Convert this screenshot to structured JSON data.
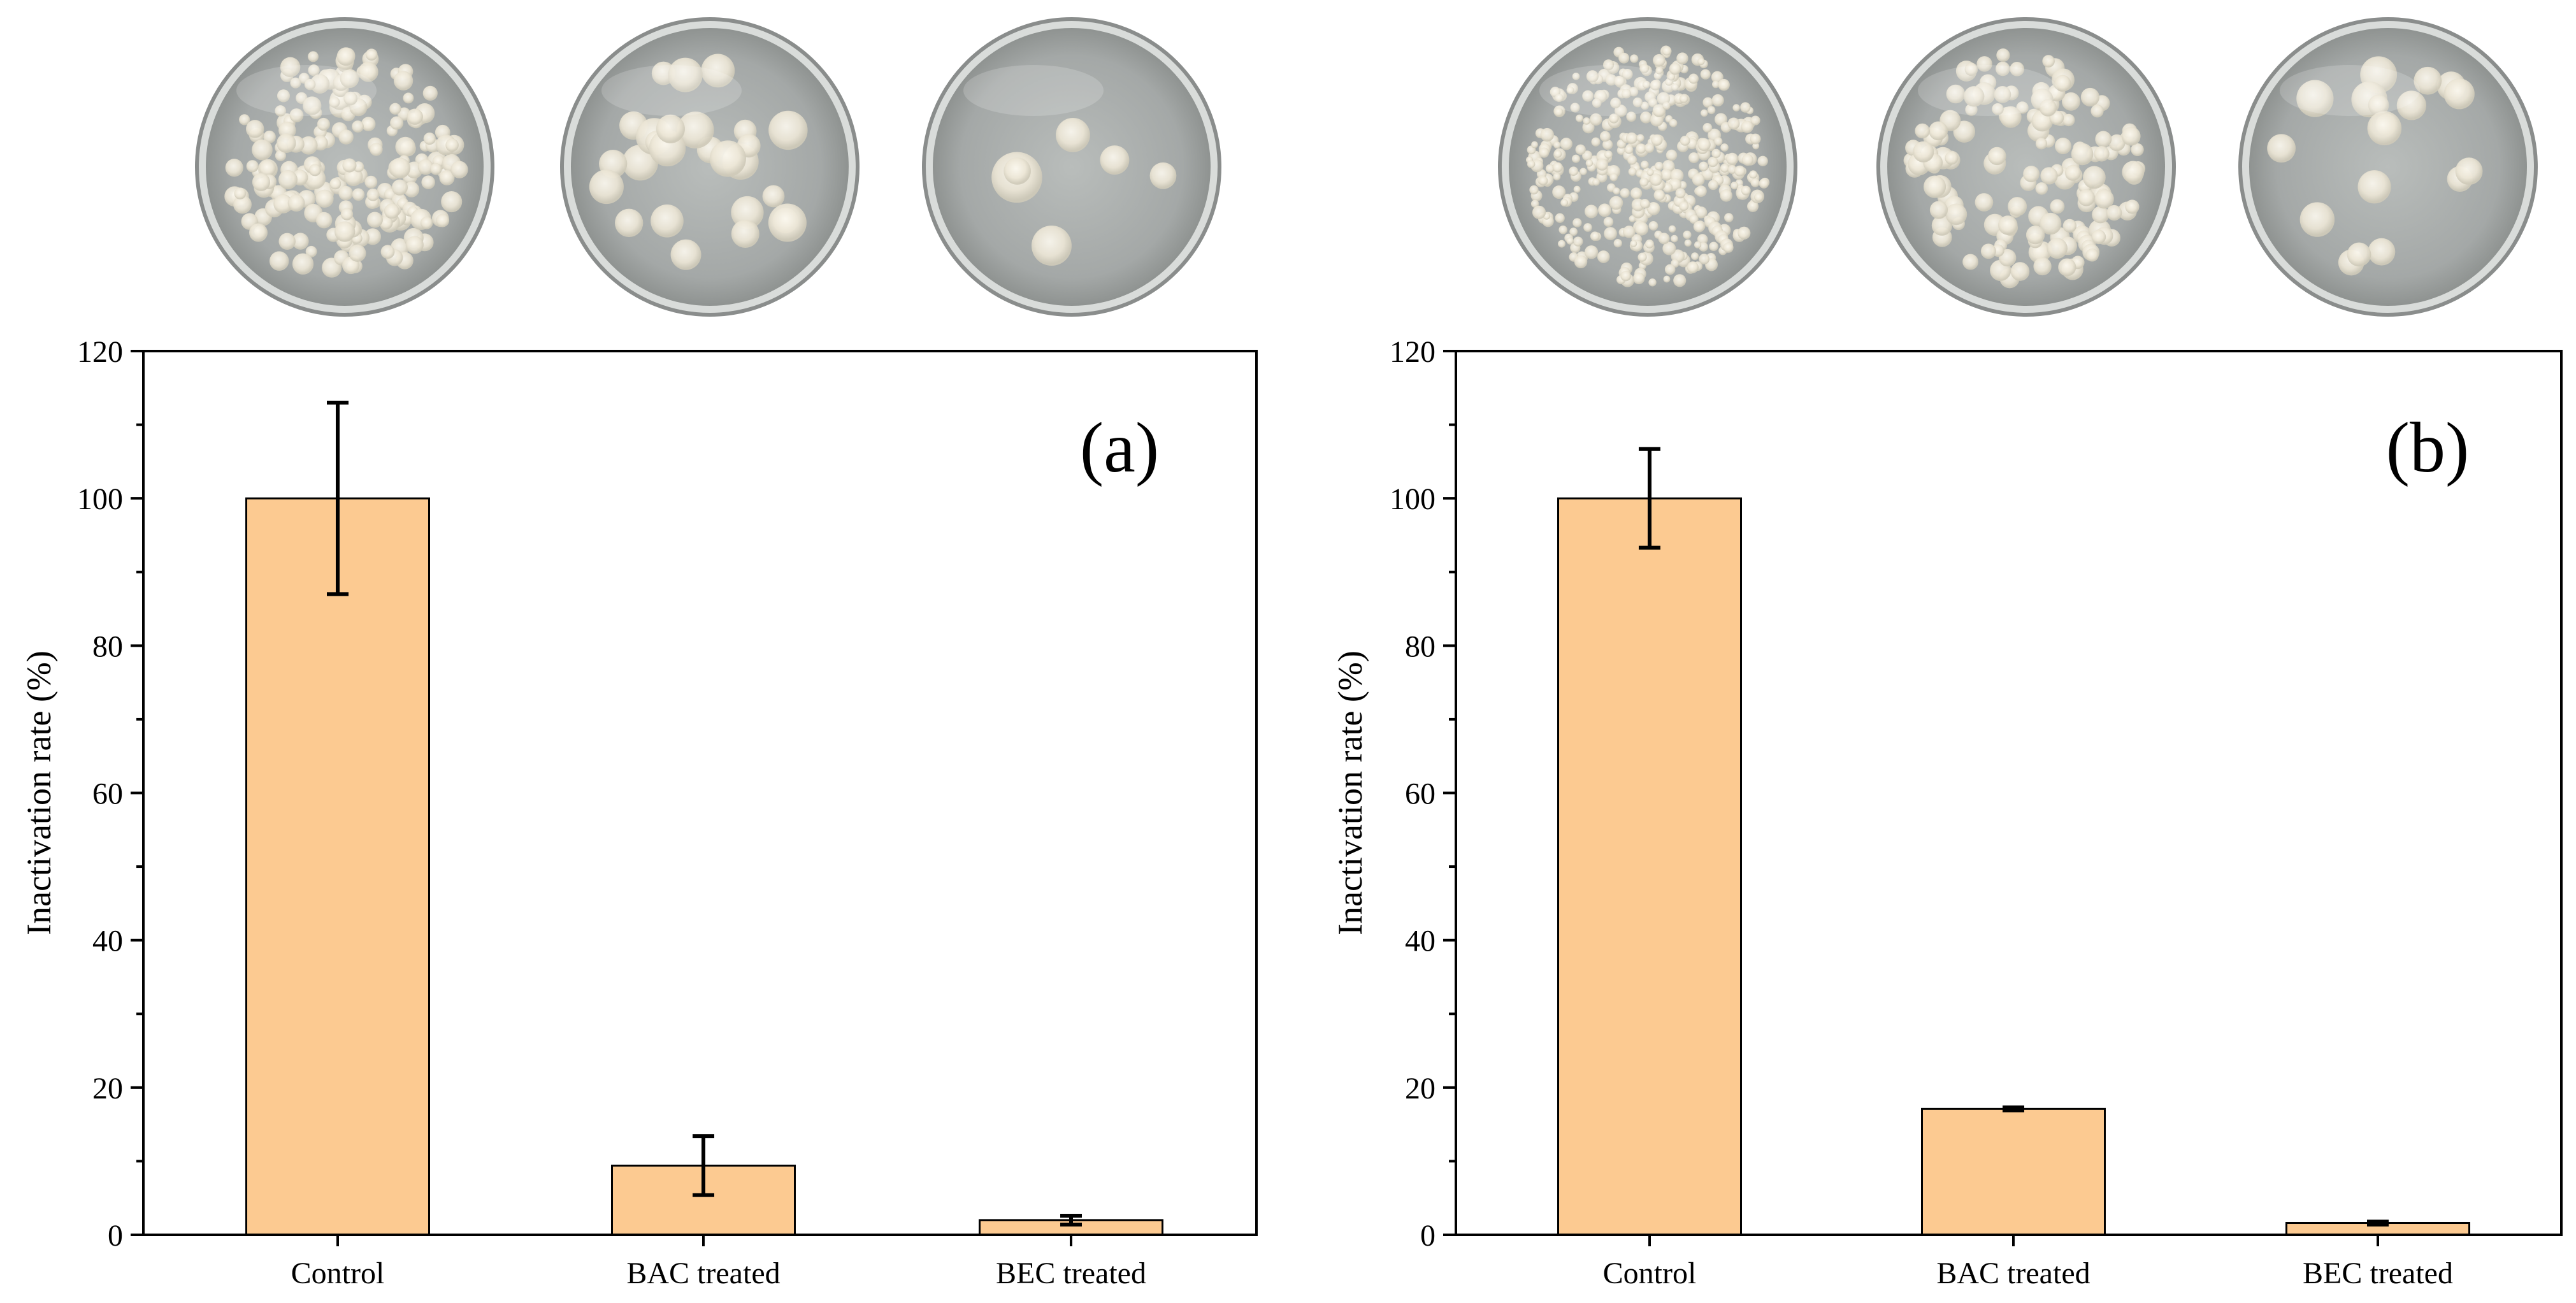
{
  "chart_data": [
    {
      "type": "bar",
      "panel_label": "(a)",
      "categories": [
        "Control",
        "BAC treated",
        "BEC treated"
      ],
      "values": [
        100,
        9.4,
        2.0
      ],
      "errors": [
        13,
        4,
        0.6
      ],
      "ylabel": "Inactivation rate (%)",
      "xlabel": "",
      "ylim": [
        0,
        120
      ],
      "yticks": [
        "0",
        "20",
        "40",
        "60",
        "80",
        "100",
        "120"
      ],
      "bar_color": "#FCCA91",
      "grid": false,
      "plates": [
        "dense-colonies-plate",
        "sparse-colonies-plate",
        "few-colonies-plate"
      ]
    },
    {
      "type": "bar",
      "panel_label": "(b)",
      "categories": [
        "Control",
        "BAC treated",
        "BEC treated"
      ],
      "values": [
        100,
        17.1,
        1.6
      ],
      "errors": [
        6.7,
        0.2,
        0.2
      ],
      "ylabel": "Inactivation rate (%)",
      "xlabel": "",
      "ylim": [
        0,
        120
      ],
      "yticks": [
        "0",
        "20",
        "40",
        "60",
        "80",
        "100",
        "120"
      ],
      "bar_color": "#FCCA91",
      "grid": false,
      "plates": [
        "dense-colonies-plate",
        "sparse-colonies-plate",
        "few-colonies-plate"
      ]
    }
  ]
}
